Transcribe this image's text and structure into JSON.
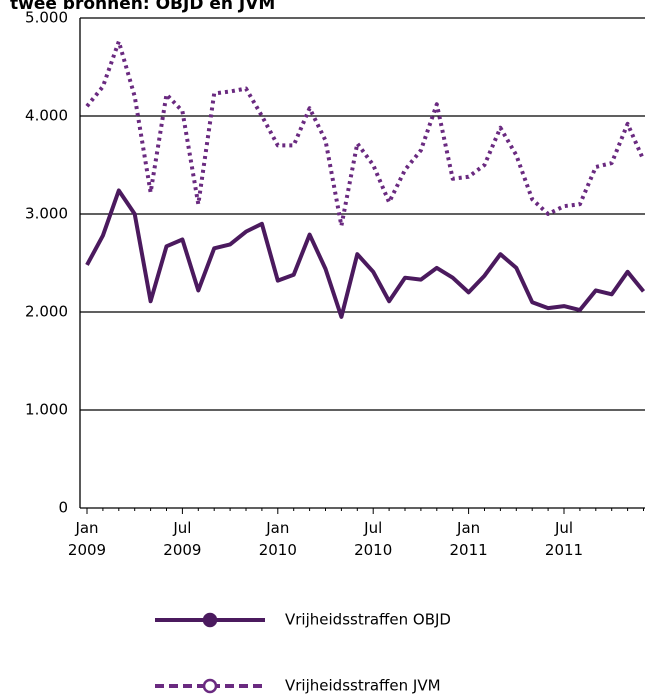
{
  "chart_data": {
    "type": "line",
    "title": "twee bronnen: OBJD en JVM",
    "categories": [
      "Jan 2009",
      null,
      null,
      null,
      null,
      null,
      "Jul 2009",
      null,
      null,
      null,
      null,
      null,
      "Jan 2010",
      null,
      null,
      null,
      null,
      null,
      "Jul 2010",
      null,
      null,
      null,
      null,
      null,
      "Jan 2011",
      null,
      null,
      null,
      null,
      null,
      "Jul 2011",
      null,
      null,
      null,
      null,
      null
    ],
    "series": [
      {
        "name": "Vrijheidsstraffen OBJD",
        "color": "#4b1a5e",
        "values": [
          2480,
          2780,
          3240,
          3000,
          2110,
          2670,
          2740,
          2220,
          2650,
          2690,
          2820,
          2900,
          2320,
          2380,
          2790,
          2440,
          1950,
          2590,
          2410,
          2110,
          2350,
          2330,
          2450,
          2350,
          2200,
          2370,
          2590,
          2450,
          2100,
          2040,
          2060,
          2020,
          2220,
          2180,
          2410,
          2210
        ]
      },
      {
        "name": "Vrijheidsstraffen JVM",
        "color": "#6a2a80",
        "dashed": true,
        "values": [
          4100,
          4300,
          4760,
          4200,
          3220,
          4220,
          4050,
          3100,
          4230,
          4250,
          4280,
          4000,
          3700,
          3700,
          4080,
          3750,
          2880,
          3720,
          3500,
          3120,
          3450,
          3650,
          4120,
          3360,
          3380,
          3500,
          3880,
          3600,
          3150,
          3000,
          3080,
          3100,
          3480,
          3520,
          3920,
          3550
        ]
      }
    ],
    "ylim": [
      0,
      5000
    ],
    "yticks": [
      0,
      {
        "value": 1000,
        "label": "1.000"
      },
      {
        "value": 2000,
        "label": "2.000"
      },
      {
        "value": 3000,
        "label": "3.000"
      },
      {
        "value": 4000,
        "label": "4.000"
      },
      {
        "value": 5000,
        "label": "5.000"
      }
    ],
    "grid": true
  }
}
